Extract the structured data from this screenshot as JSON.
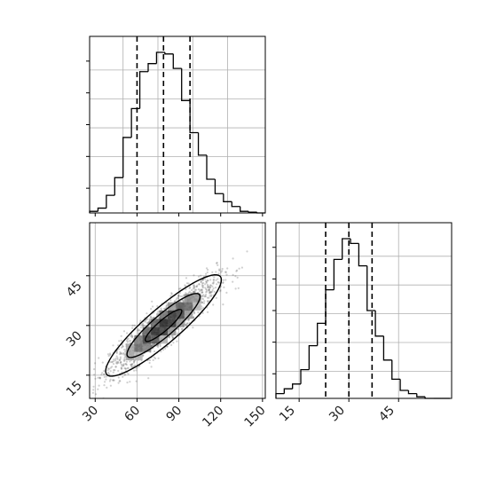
{
  "chart_data": {
    "type": "corner",
    "colors": {
      "line": "#000000",
      "grid": "#b0b0b0",
      "points": "#555555",
      "background": "#ffffff"
    },
    "panels": [
      {
        "kind": "histogram",
        "parameter": 0,
        "xlim": [
          26,
          152
        ],
        "ylim": [
          0,
          1
        ],
        "grid": true,
        "bins": {
          "edges": [
            26,
            32,
            38,
            44,
            50,
            56,
            62,
            68,
            74,
            80,
            86,
            92,
            98,
            104,
            110,
            116,
            122,
            128,
            134,
            140,
            146,
            152
          ],
          "heights": [
            0.01,
            0.03,
            0.11,
            0.22,
            0.47,
            0.65,
            0.88,
            0.93,
            1.0,
            0.99,
            0.9,
            0.7,
            0.5,
            0.36,
            0.21,
            0.12,
            0.07,
            0.04,
            0.01,
            0.005,
            0.0
          ]
        },
        "quantile_lines": [
          60,
          79,
          98
        ]
      },
      {
        "kind": "2d_density",
        "parameters": [
          0,
          1
        ],
        "xlim": [
          26,
          152
        ],
        "ylim": [
          8,
          61
        ],
        "grid": true,
        "x_ticks": [
          30,
          60,
          90,
          120,
          150
        ],
        "y_ticks": [
          15,
          30,
          45
        ],
        "x_tick_labels": [
          "30",
          "60",
          "90",
          "120",
          "150"
        ],
        "y_tick_labels": [
          "15",
          "30",
          "45"
        ],
        "correlation": 0.9,
        "mean": [
          79,
          30
        ],
        "std": [
          19,
          7
        ],
        "contour_levels": [
          "inner",
          "middle",
          "outer"
        ]
      },
      {
        "kind": "histogram",
        "parameter": 1,
        "xlim": [
          8,
          61
        ],
        "ylim": [
          0,
          1
        ],
        "grid": true,
        "x_ticks": [
          15,
          30,
          45
        ],
        "x_tick_labels": [
          "15",
          "30",
          "45"
        ],
        "bins": {
          "edges": [
            8,
            10.5,
            13,
            15.5,
            18,
            20.5,
            23,
            25.5,
            28,
            30.5,
            33,
            35.5,
            38,
            40.5,
            43,
            45.5,
            48,
            50.5,
            53,
            55.5,
            58,
            60.5
          ],
          "heights": [
            0.03,
            0.06,
            0.09,
            0.18,
            0.33,
            0.47,
            0.68,
            0.87,
            1.0,
            0.97,
            0.83,
            0.55,
            0.39,
            0.24,
            0.12,
            0.05,
            0.03,
            0.01,
            0.0,
            0.0,
            0.0
          ]
        },
        "quantile_lines": [
          23,
          30,
          37
        ]
      }
    ]
  }
}
